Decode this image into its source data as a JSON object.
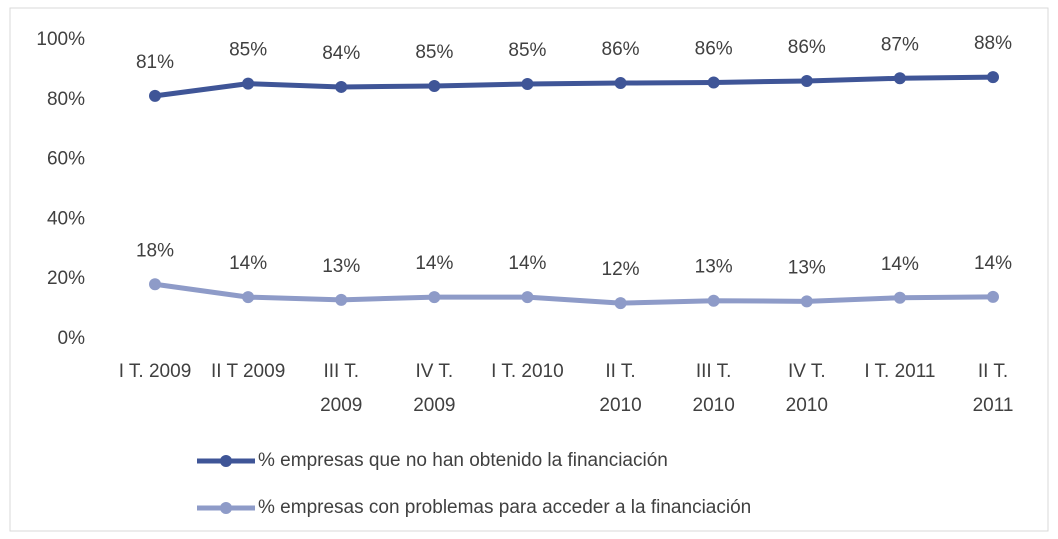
{
  "chart_data": {
    "type": "line",
    "categories": [
      "I T. 2009",
      "II T 2009",
      "III T. 2009",
      "IV T. 2009",
      "I T. 2010",
      "II T. 2010",
      "III T. 2010",
      "IV T. 2010",
      "I T. 2011",
      "II T. 2011"
    ],
    "series": [
      {
        "name": "% empresas que no han obtenido la financiación",
        "color": "#3f5597",
        "values": [
          81.3,
          85.4,
          84.3,
          84.6,
          85.3,
          85.6,
          85.8,
          86.3,
          87.2,
          87.6
        ],
        "value_labels": [
          "81%",
          "85%",
          "84%",
          "85%",
          "85%",
          "86%",
          "86%",
          "86%",
          "87%",
          "88%"
        ]
      },
      {
        "name": "% empresas con problemas para acceder a la financiación",
        "color": "#8e9bc8",
        "values": [
          18.3,
          14.0,
          13.1,
          14.0,
          14.0,
          12.0,
          12.8,
          12.6,
          13.8,
          14.1
        ],
        "value_labels": [
          "18%",
          "14%",
          "13%",
          "14%",
          "14%",
          "12%",
          "13%",
          "13%",
          "14%",
          "14%"
        ]
      }
    ],
    "ylim": [
      0,
      100
    ],
    "yticks": [
      {
        "value": 0,
        "label": "0%"
      },
      {
        "value": 20,
        "label": "20%"
      },
      {
        "value": 40,
        "label": "40%"
      },
      {
        "value": 60,
        "label": "60%"
      },
      {
        "value": 80,
        "label": "80%"
      },
      {
        "value": 100,
        "label": "100%"
      }
    ],
    "grid": false,
    "legend": "bottom"
  }
}
